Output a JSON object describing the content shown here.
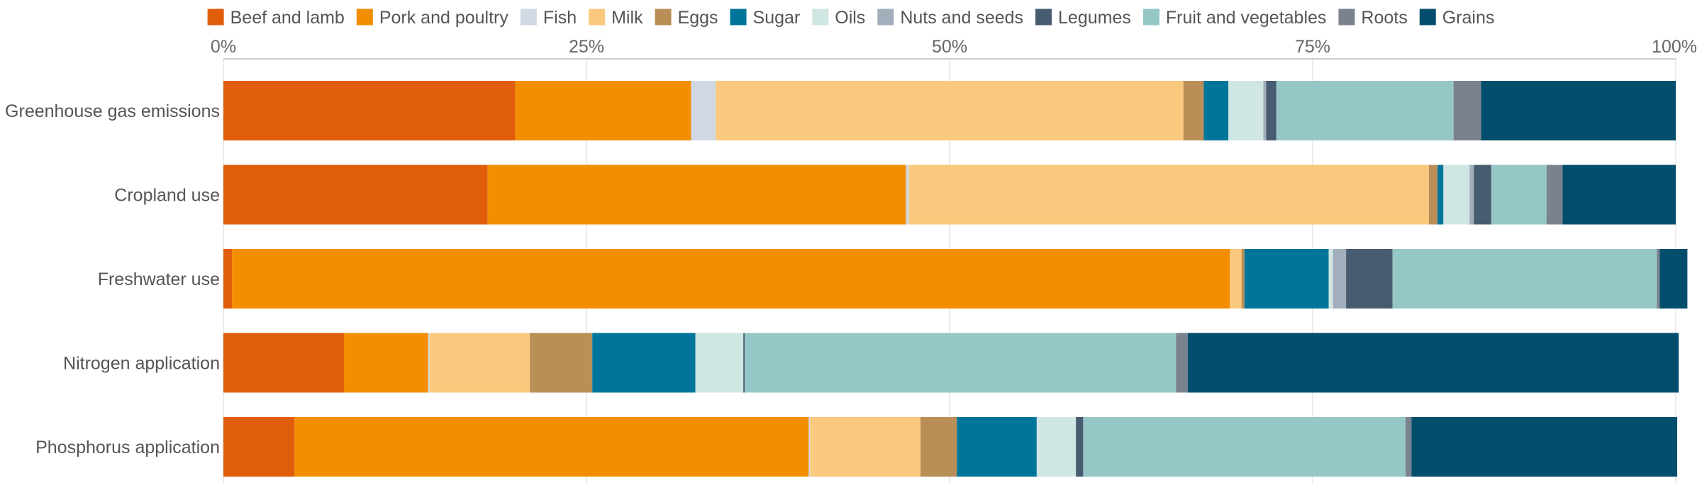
{
  "chart_data": {
    "type": "bar",
    "orientation": "horizontal",
    "stacked": true,
    "normalized": true,
    "xlim": [
      0,
      100
    ],
    "x_ticks": [
      {
        "value": 0,
        "label": "0%"
      },
      {
        "value": 25,
        "label": "25%"
      },
      {
        "value": 50,
        "label": "50%"
      },
      {
        "value": 75,
        "label": "75%"
      },
      {
        "value": 100,
        "label": "100%"
      }
    ],
    "grid": true,
    "legend_position": "top",
    "categories": [
      "Greenhouse gas emissions",
      "Cropland use",
      "Freshwater use",
      "Nitrogen application",
      "Phosphorus application"
    ],
    "series": [
      {
        "name": "Beef and lamb",
        "color": "#e05e0b",
        "values": [
          20.1,
          18.2,
          0.6,
          8.3,
          4.9
        ]
      },
      {
        "name": "Pork and poultry",
        "color": "#f28e00",
        "values": [
          12.1,
          28.8,
          68.7,
          5.8,
          35.4
        ]
      },
      {
        "name": "Fish",
        "color": "#cfd8e3",
        "values": [
          1.7,
          0.2,
          0.0,
          0.1,
          0.1
        ]
      },
      {
        "name": "Milk",
        "color": "#fbc97d",
        "values": [
          32.2,
          35.8,
          0.8,
          6.9,
          7.6
        ]
      },
      {
        "name": "Eggs",
        "color": "#b98f57",
        "values": [
          1.4,
          0.6,
          0.2,
          4.3,
          2.5
        ]
      },
      {
        "name": "Sugar",
        "color": "#00759a",
        "values": [
          1.7,
          0.4,
          5.8,
          7.1,
          5.5
        ]
      },
      {
        "name": "Oils",
        "color": "#cfe6e3",
        "values": [
          2.4,
          1.8,
          0.3,
          3.3,
          2.7
        ]
      },
      {
        "name": "Nuts and seeds",
        "color": "#a3aebd",
        "values": [
          0.2,
          0.3,
          0.9,
          0.0,
          0.0
        ]
      },
      {
        "name": "Legumes",
        "color": "#475c70",
        "values": [
          0.7,
          1.2,
          3.2,
          0.1,
          0.5
        ]
      },
      {
        "name": "Fruit and vegetables",
        "color": "#95c7c6",
        "values": [
          12.2,
          3.8,
          18.2,
          29.7,
          22.2
        ]
      },
      {
        "name": "Roots",
        "color": "#7a8290",
        "values": [
          1.9,
          1.1,
          0.2,
          0.8,
          0.4
        ]
      },
      {
        "name": "Grains",
        "color": "#024e6c",
        "values": [
          13.4,
          7.8,
          1.9,
          33.8,
          18.3
        ]
      }
    ]
  }
}
